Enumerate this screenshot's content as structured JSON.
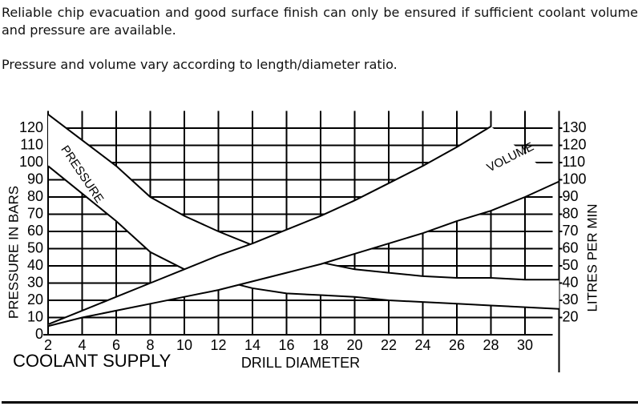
{
  "paragraphs": [
    "Reliable chip evacuation and good surface finish can only be ensured if sufficient coolant volume and pressure are available.",
    "Pressure and volume vary according to length/diameter ratio."
  ],
  "chart_data": {
    "type": "line",
    "y_label": "PRESSURE IN BARS",
    "y2_label": "LITRES PER MIN",
    "x_label": "DRILL DIAMETER",
    "footer_label": "COOLANT SUPPLY",
    "x": [
      2,
      4,
      6,
      8,
      10,
      12,
      14,
      16,
      18,
      20,
      22,
      24,
      26,
      28,
      30,
      32
    ],
    "xlim": [
      2,
      32
    ],
    "xticks": [
      2,
      4,
      6,
      8,
      10,
      12,
      14,
      16,
      18,
      20,
      22,
      24,
      26,
      28,
      30
    ],
    "ylim": [
      0,
      130
    ],
    "yticks": [
      0,
      10,
      20,
      30,
      40,
      50,
      60,
      70,
      80,
      90,
      100,
      110,
      120
    ],
    "y2lim": [
      10,
      140
    ],
    "y2ticks": [
      20,
      30,
      40,
      50,
      60,
      70,
      80,
      90,
      100,
      110,
      120,
      130
    ],
    "grid": true,
    "color": "#000000",
    "series": [
      {
        "name": "PRESSURE",
        "axis": "y",
        "upper": [
          128,
          113,
          98,
          80,
          69,
          60,
          52,
          46,
          42,
          38,
          36,
          34,
          33,
          33,
          32,
          32
        ],
        "lower": [
          98,
          82,
          66,
          48,
          38,
          32,
          27,
          24,
          23,
          22,
          20,
          19,
          18,
          17,
          16,
          15
        ]
      },
      {
        "name": "VOLUME",
        "axis": "y2",
        "upper": [
          16,
          24,
          32,
          40,
          48,
          56,
          63,
          71,
          79,
          88,
          98,
          108,
          119,
          131,
          null,
          null
        ],
        "lower": [
          15,
          20,
          24,
          28,
          32,
          36,
          41,
          46,
          51,
          57,
          63,
          69,
          76,
          82,
          90,
          99
        ]
      }
    ]
  }
}
